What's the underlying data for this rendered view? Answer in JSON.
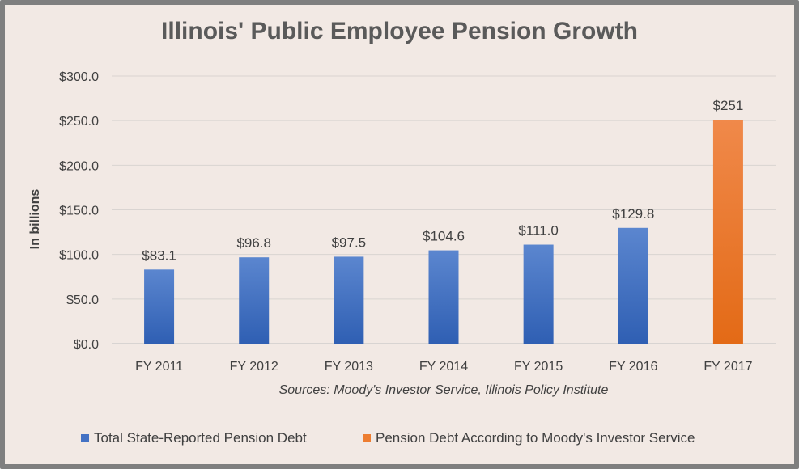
{
  "chart_data": {
    "type": "bar",
    "title": "Illinois' Public Employee Pension Growth",
    "ylabel": "In billions",
    "xlabel": "",
    "source": "Sources: Moody's Investor Service, Illinois Policy Institute",
    "categories": [
      "FY 2011",
      "FY 2012",
      "FY 2013",
      "FY 2014",
      "FY 2015",
      "FY 2016",
      "FY 2017"
    ],
    "ylim": [
      0,
      300
    ],
    "y_ticks": [
      0,
      50,
      100,
      150,
      200,
      250,
      300
    ],
    "y_tick_labels": [
      "$0.0",
      "$50.0",
      "$100.0",
      "$150.0",
      "$200.0",
      "$250.0",
      "$300.0"
    ],
    "grid": true,
    "legend_position": "bottom",
    "series": [
      {
        "name": "Total State-Reported Pension Debt",
        "color": "#4472c4",
        "values": [
          83.1,
          96.8,
          97.5,
          104.6,
          111.0,
          129.8,
          null
        ],
        "labels": [
          "$83.1",
          "$96.8",
          "$97.5",
          "$104.6",
          "$111.0",
          "$129.8",
          ""
        ]
      },
      {
        "name": "Pension Debt According to Moody's Investor Service",
        "color": "#ed7d31",
        "values": [
          null,
          null,
          null,
          null,
          null,
          null,
          251
        ],
        "labels": [
          "",
          "",
          "",
          "",
          "",
          "",
          "$251"
        ]
      }
    ]
  }
}
